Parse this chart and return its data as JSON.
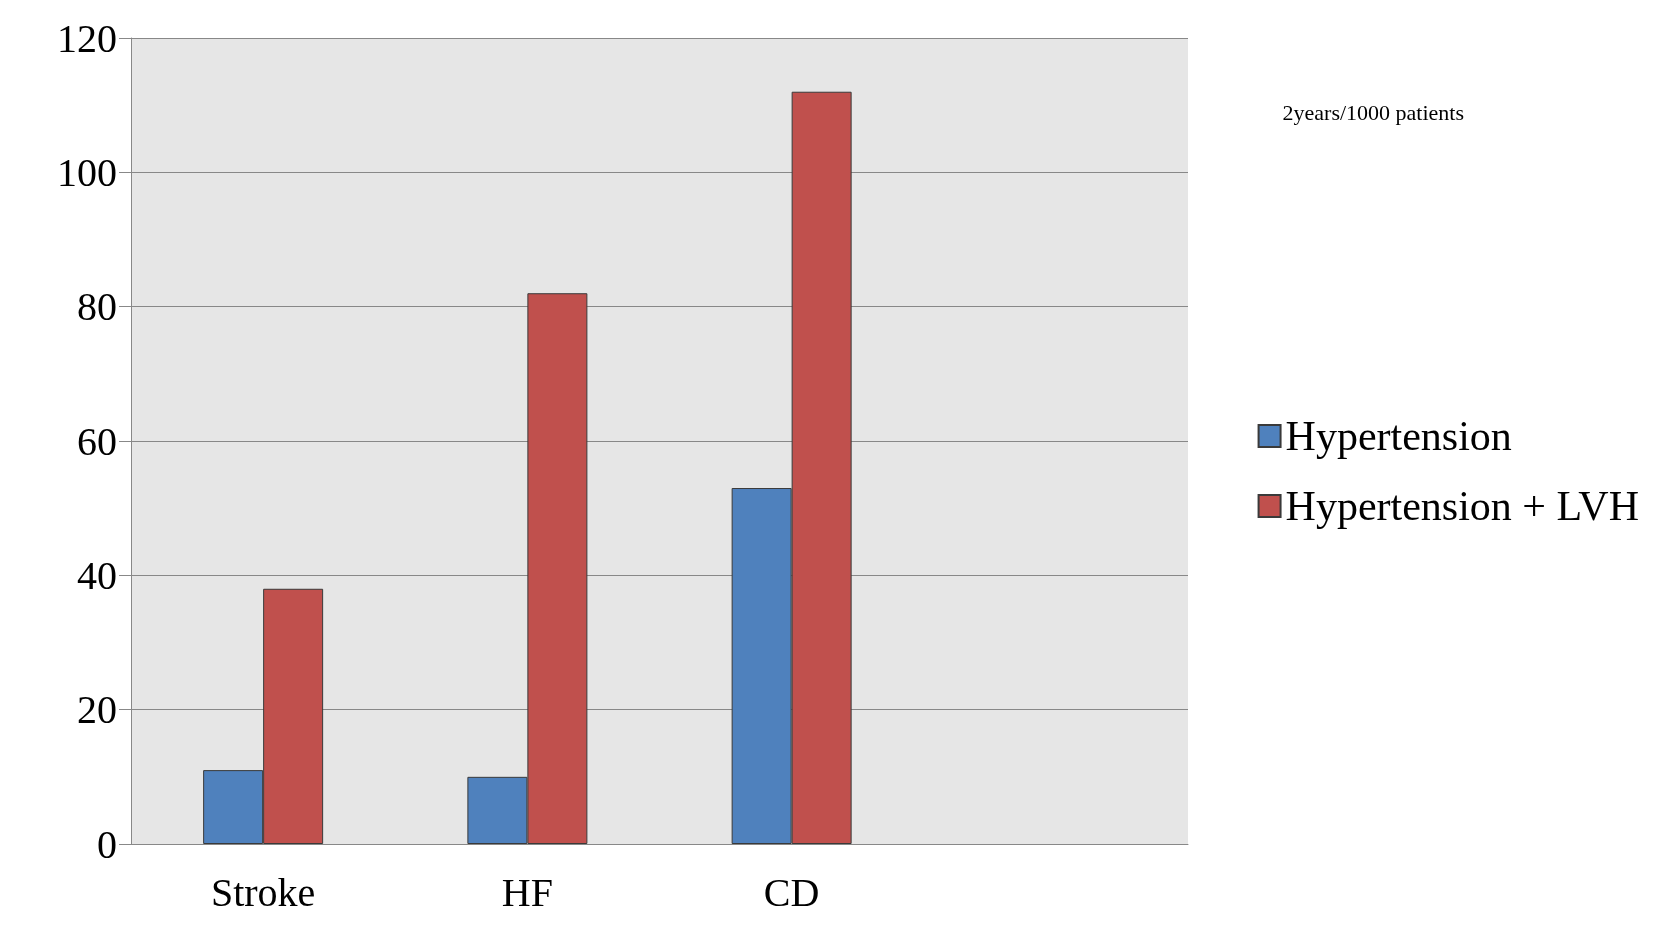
{
  "chart_data": {
    "type": "bar",
    "categories": [
      "Stroke",
      "HF",
      "CD",
      null
    ],
    "series": [
      {
        "name": "Hypertension",
        "color": "#4f81bd",
        "values": [
          11,
          10,
          53,
          null
        ]
      },
      {
        "name": "Hypertension + LVH",
        "color": "#c0504d",
        "values": [
          38,
          82,
          112,
          null
        ]
      }
    ],
    "ylim": [
      0,
      120
    ],
    "yticks": [
      0,
      20,
      40,
      60,
      80,
      100,
      120
    ],
    "grid": "y",
    "legend": "right",
    "annotations": [
      "2years/1000 patients"
    ]
  }
}
